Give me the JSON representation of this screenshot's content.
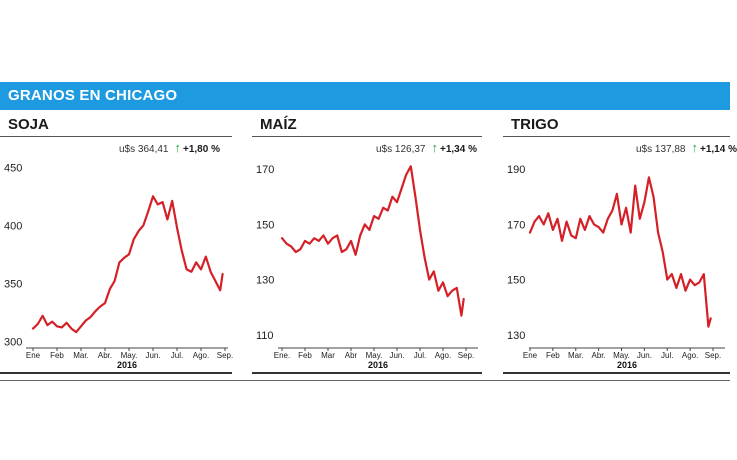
{
  "header": {
    "title": "GRANOS EN CHICAGO"
  },
  "colors": {
    "banner": "#1e9be0",
    "line": "#d42027",
    "up_arrow": "#25a83a"
  },
  "chart_data": [
    {
      "type": "line",
      "title": "SOJA",
      "price": "u$s 364,41",
      "change": "+1,80 %",
      "change_direction": "up",
      "categories": [
        "Ene",
        "Feb",
        "Mar.",
        "Abr.",
        "May.",
        "Jun.",
        "Jul.",
        "Ago.",
        "Sep."
      ],
      "year": "2016",
      "yticks": [
        300,
        350,
        400,
        450
      ],
      "ylim": [
        296,
        458
      ],
      "series": [
        {
          "x": [
            0,
            0.2,
            0.4,
            0.6,
            0.8,
            1.0,
            1.2,
            1.4,
            1.6,
            1.8,
            2.0,
            2.2,
            2.4,
            2.6,
            2.8,
            3.0,
            3.2,
            3.4,
            3.6,
            3.8,
            4.0,
            4.2,
            4.4,
            4.6,
            4.8,
            5.0,
            5.2,
            5.4,
            5.6,
            5.8,
            6.0,
            6.2,
            6.4,
            6.6,
            6.8,
            7.0,
            7.2,
            7.4,
            7.6,
            7.8,
            7.9
          ],
          "values": [
            311,
            315,
            322,
            314,
            317,
            313,
            312,
            316,
            311,
            308,
            313,
            318,
            321,
            326,
            330,
            333,
            345,
            352,
            368,
            372,
            375,
            388,
            395,
            400,
            412,
            425,
            418,
            420,
            405,
            421,
            398,
            378,
            362,
            360,
            368,
            362,
            373,
            360,
            352,
            344,
            358
          ]
        }
      ]
    },
    {
      "type": "line",
      "title": "MAÍZ",
      "price": "u$s 126,37",
      "change": "+1,34 %",
      "change_direction": "up",
      "categories": [
        "Ene.",
        "Feb",
        "Mar",
        "Abr",
        "May.",
        "Jun.",
        "Jul.",
        "Ago.",
        "Sep."
      ],
      "year": "2016",
      "yticks": [
        110,
        130,
        150,
        170
      ],
      "ylim": [
        106,
        174
      ],
      "series": [
        {
          "x": [
            0,
            0.2,
            0.4,
            0.6,
            0.8,
            1.0,
            1.2,
            1.4,
            1.6,
            1.8,
            2.0,
            2.2,
            2.4,
            2.6,
            2.8,
            3.0,
            3.2,
            3.4,
            3.6,
            3.8,
            4.0,
            4.2,
            4.4,
            4.6,
            4.8,
            5.0,
            5.2,
            5.4,
            5.6,
            5.8,
            6.0,
            6.2,
            6.4,
            6.6,
            6.8,
            7.0,
            7.2,
            7.4,
            7.6,
            7.8,
            7.9
          ],
          "values": [
            145,
            143,
            142,
            140,
            141,
            144,
            143,
            145,
            144,
            146,
            143,
            145,
            146,
            140,
            141,
            144,
            139,
            146,
            150,
            148,
            153,
            152,
            156,
            155,
            160,
            158,
            163,
            168,
            171,
            160,
            148,
            138,
            130,
            133,
            126,
            129,
            124,
            126,
            127,
            117,
            123
          ]
        }
      ]
    },
    {
      "type": "line",
      "title": "TRIGO",
      "price": "u$s 137,88",
      "change": "+1,14 %",
      "change_direction": "up",
      "categories": [
        "Ene",
        "Feb",
        "Mar.",
        "Abr.",
        "May.",
        "Jun.",
        "Jul.",
        "Ago.",
        "Sep."
      ],
      "year": "2016",
      "yticks": [
        130,
        150,
        170,
        190
      ],
      "ylim": [
        126,
        194
      ],
      "series": [
        {
          "x": [
            0,
            0.2,
            0.4,
            0.6,
            0.8,
            1.0,
            1.2,
            1.4,
            1.6,
            1.8,
            2.0,
            2.2,
            2.4,
            2.6,
            2.8,
            3.0,
            3.2,
            3.4,
            3.6,
            3.8,
            4.0,
            4.2,
            4.4,
            4.6,
            4.8,
            5.0,
            5.2,
            5.4,
            5.6,
            5.8,
            6.0,
            6.2,
            6.4,
            6.6,
            6.8,
            7.0,
            7.2,
            7.4,
            7.6,
            7.8,
            7.9
          ],
          "values": [
            167,
            171,
            173,
            170,
            174,
            168,
            172,
            164,
            171,
            166,
            165,
            172,
            168,
            173,
            170,
            169,
            167,
            172,
            175,
            181,
            170,
            176,
            167,
            184,
            172,
            178,
            187,
            180,
            167,
            160,
            150,
            152,
            147,
            152,
            146,
            150,
            148,
            149,
            152,
            133,
            136
          ]
        }
      ]
    }
  ]
}
